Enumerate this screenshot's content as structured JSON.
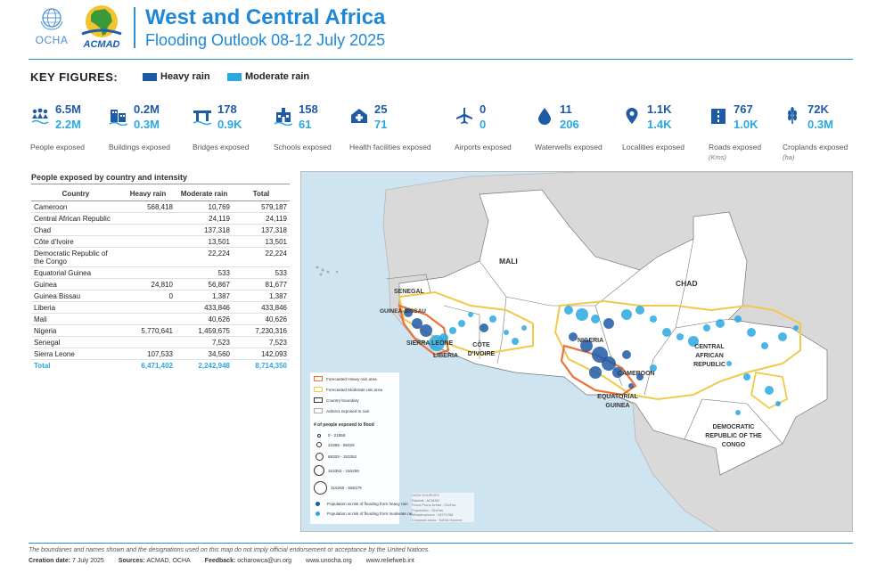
{
  "header": {
    "ocha_logo_text": "OCHA",
    "acmad_logo_text": "ACMAD",
    "title": "West and Central Africa",
    "subtitle": "Flooding Outlook 08-12 July 2025"
  },
  "key_figures": {
    "title": "KEY FIGURES:",
    "legend": [
      {
        "label": "Heavy rain",
        "color": "#1f5aa6"
      },
      {
        "label": "Moderate rain",
        "color": "#29a9e0"
      }
    ],
    "items": [
      {
        "icon": "people-icon",
        "heavy": "6.5M",
        "moderate": "2.2M",
        "label": "People exposed",
        "unit": ""
      },
      {
        "icon": "building-icon",
        "heavy": "0.2M",
        "moderate": "0.3M",
        "label": "Buildings exposed",
        "unit": ""
      },
      {
        "icon": "bridge-icon",
        "heavy": "178",
        "moderate": "0.9K",
        "label": "Bridges exposed",
        "unit": ""
      },
      {
        "icon": "school-icon",
        "heavy": "158",
        "moderate": "61",
        "label": "Schools exposed",
        "unit": ""
      },
      {
        "icon": "health-facility-icon",
        "heavy": "25",
        "moderate": "71",
        "label": "Health facilities exposed",
        "unit": ""
      },
      {
        "icon": "airport-icon",
        "heavy": "0",
        "moderate": "0",
        "label": "Airports exposed",
        "unit": ""
      },
      {
        "icon": "water-drop-icon",
        "heavy": "11",
        "moderate": "206",
        "label": "Waterwells exposed",
        "unit": ""
      },
      {
        "icon": "location-pin-icon",
        "heavy": "1.1K",
        "moderate": "1.4K",
        "label": "Localities exposed",
        "unit": ""
      },
      {
        "icon": "road-icon",
        "heavy": "767",
        "moderate": "1.0K",
        "label": "Roads exposed",
        "unit": "(Kms)"
      },
      {
        "icon": "crop-icon",
        "heavy": "72K",
        "moderate": "0.3M",
        "label": "Croplands exposed",
        "unit": "(ha)"
      }
    ]
  },
  "table": {
    "title": "People exposed by country and intensity",
    "headers": [
      "Country",
      "Heavy rain",
      "Moderate rain",
      "Total"
    ],
    "rows": [
      [
        "Cameroon",
        "568,418",
        "10,769",
        "579,187"
      ],
      [
        "Central African Republic",
        "",
        "24,119",
        "24,119"
      ],
      [
        "Chad",
        "",
        "137,318",
        "137,318"
      ],
      [
        "Côte d'Ivoire",
        "",
        "13,501",
        "13,501"
      ],
      [
        "Democratic Republic of the Congo",
        "",
        "22,224",
        "22,224"
      ],
      [
        "Equatorial Guinea",
        "",
        "533",
        "533"
      ],
      [
        "Guinea",
        "24,810",
        "56,867",
        "81,677"
      ],
      [
        "Guinea Bissau",
        "0",
        "1,387",
        "1,387"
      ],
      [
        "Liberia",
        "",
        "433,846",
        "433,846"
      ],
      [
        "Mali",
        "",
        "40,626",
        "40,626"
      ],
      [
        "Nigeria",
        "5,770,641",
        "1,459,675",
        "7,230,316"
      ],
      [
        "Senegal",
        "",
        "7,523",
        "7,523"
      ],
      [
        "Sierra Leone",
        "107,533",
        "34,560",
        "142,093"
      ]
    ],
    "total": [
      "Total",
      "6,471,402",
      "2,242,948",
      "8,714,350"
    ]
  },
  "map": {
    "labels": {
      "mali": "MALI",
      "chad": "CHAD",
      "senegal": "SENEGAL",
      "guinea_bissau": "GUINEA-BISSAU",
      "sierra_leone": "SIERRA LEONE",
      "liberia": "LIBERIA",
      "cote_divoire": "CÔTE D'IVOIRE",
      "nigeria": "NIGERIA",
      "cameroon": "CAMEROON",
      "equatorial_guinea": "EQUATORIAL GUINEA",
      "car": "CENTRAL AFRICAN REPUBLIC",
      "drc": "DEMOCRATIC REPUBLIC OF THE CONGO"
    },
    "legend": {
      "heavy_area": "Forecasted Heavy rain area",
      "moderate_area": "Forecasted Moderate rain area",
      "boundary": "Country boundary",
      "admin1": "Admin1 exposed to rain",
      "circles_title": "# of people exposed to flood",
      "circle_ranges": [
        "0 - 21858",
        "21859 - 68328",
        "68329 - 153352",
        "153353 - 316259",
        "316260 - 568179"
      ],
      "heavy_pop": "Population at risk of flooding from heavy rain",
      "moderate_pop": "Population at risk of flooding from moderate rain"
    },
    "data_sources": [
      "DATA SOURCES",
      "Rainfall : ACMAD",
      "Flood Prone Areas : GloFas",
      "Population : GloFas",
      "Infrastructures : HOTOSM",
      "Cropland areas : NASA Harvest"
    ],
    "colors": {
      "heavy": "#e8733a",
      "moderate": "#f2c84b",
      "sea": "#cfe4f1",
      "land": "#ffffff",
      "other_land": "#d9d9d9",
      "heavy_dot": "#1f5aa6",
      "moderate_dot": "#29a9e0"
    }
  },
  "footer": {
    "disclaimer": "The boundaries and names shown and the designations used on this map do not imply official endorsement or acceptance by the United Nations.",
    "creation_label": "Creation date:",
    "creation_date": "7 July 2025",
    "sources_label": "Sources:",
    "sources": "ACMAD, OCHA",
    "feedback_label": "Feedback:",
    "feedback": "ocharowca@un.org",
    "site1": "www.unocha.org",
    "site2": "www.reliefweb.int"
  }
}
